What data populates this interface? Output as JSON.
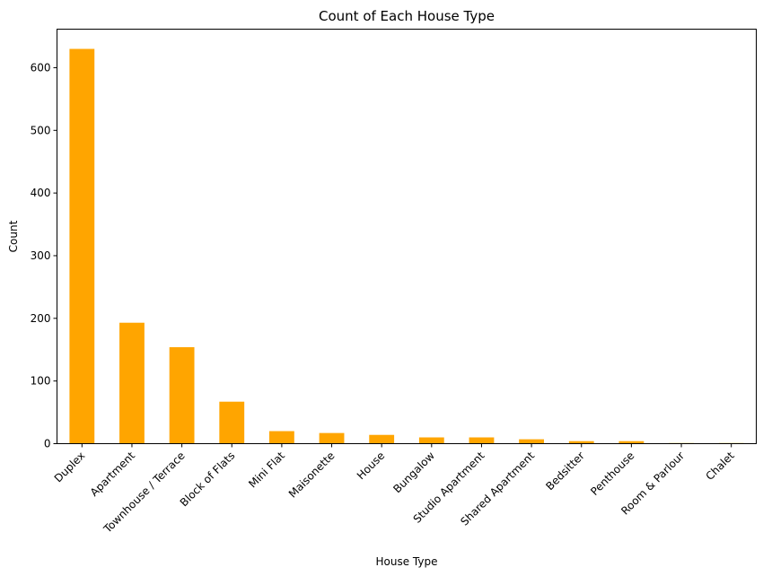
{
  "chart_data": {
    "type": "bar",
    "title": "Count of Each House Type",
    "xlabel": "House Type",
    "ylabel": "Count",
    "categories": [
      "Duplex",
      "Apartment",
      "Townhouse / Terrace",
      "Block of Flats",
      "Mini Flat",
      "Maisonette",
      "House",
      "Bungalow",
      "Studio Apartment",
      "Shared Apartment",
      "Bedsitter",
      "Penthouse",
      "Room & Parlour",
      "Chalet"
    ],
    "values": [
      630,
      193,
      154,
      67,
      20,
      17,
      14,
      10,
      10,
      7,
      4,
      4,
      1,
      1
    ],
    "yticks": [
      0,
      100,
      200,
      300,
      400,
      500,
      600
    ],
    "ylim": [
      0,
      661.5
    ],
    "bar_color": "#FFA500",
    "grid": false,
    "legend": "none"
  }
}
